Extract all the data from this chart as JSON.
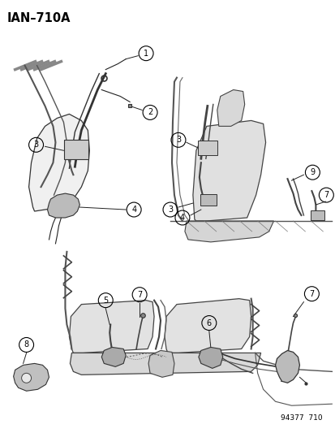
{
  "title": "IAN–710A",
  "footer": "94377  710",
  "bg_color": "#ffffff",
  "fg_color": "#000000",
  "title_fontsize": 10.5,
  "footer_fontsize": 6.5,
  "label_fontsize": 7
}
